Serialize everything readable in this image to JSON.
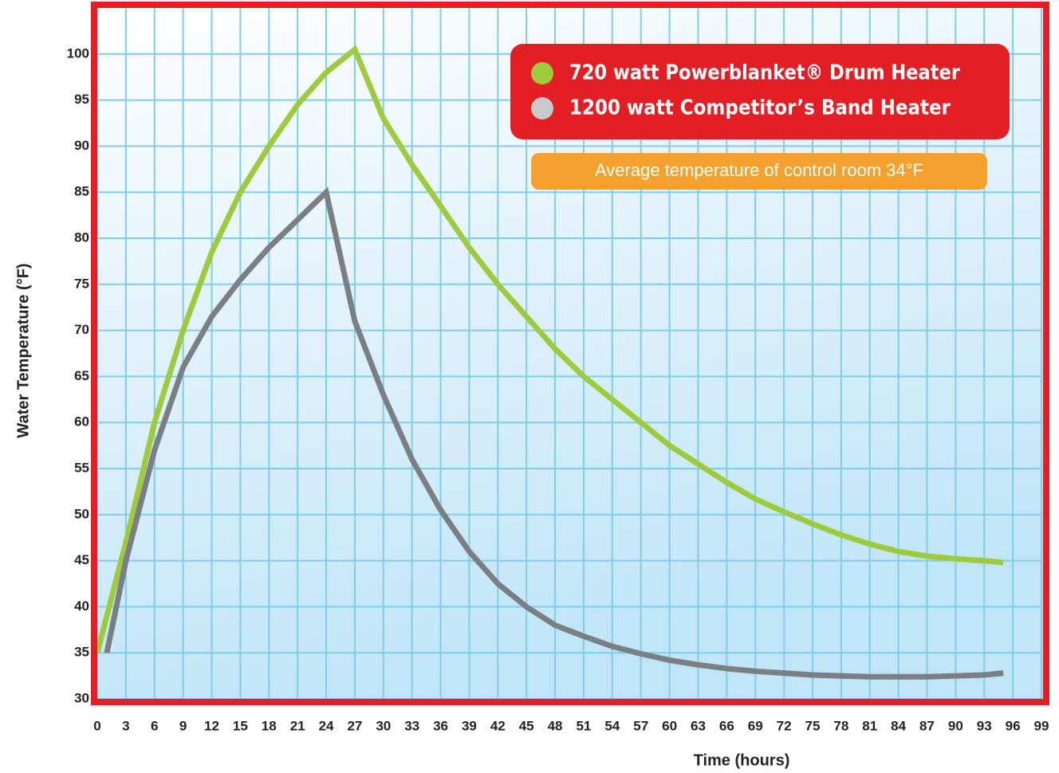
{
  "chart_data": {
    "type": "line",
    "y_label": "Water Temperature (°F)",
    "x_label": "Time (hours)",
    "annotation": "Average temperature of control room 34°F",
    "xlim": [
      0,
      99
    ],
    "ylim": [
      30,
      105
    ],
    "xticks": [
      0,
      3,
      6,
      9,
      12,
      15,
      18,
      21,
      24,
      27,
      30,
      33,
      36,
      39,
      42,
      45,
      48,
      51,
      54,
      57,
      60,
      63,
      66,
      69,
      72,
      75,
      78,
      81,
      84,
      87,
      90,
      93,
      96,
      99
    ],
    "yticks": [
      30,
      35,
      40,
      45,
      50,
      55,
      60,
      65,
      70,
      75,
      80,
      85,
      90,
      95,
      100
    ],
    "grid": true,
    "series": [
      {
        "name": "720 watt Powerblanket® Drum Heater",
        "color": "#9dcb3c",
        "x": [
          0,
          3,
          6,
          9,
          12,
          15,
          18,
          21,
          24,
          27,
          30,
          33,
          36,
          39,
          42,
          45,
          48,
          51,
          54,
          57,
          60,
          63,
          66,
          69,
          72,
          75,
          78,
          81,
          84,
          87,
          90,
          93,
          95
        ],
        "values": [
          35,
          47,
          60,
          70,
          78.5,
          85,
          90,
          94.5,
          98,
          100.5,
          93,
          88,
          83.5,
          79,
          75,
          71.5,
          68,
          65,
          62.5,
          60,
          57.5,
          55.5,
          53.5,
          51.7,
          50.3,
          49,
          47.8,
          46.8,
          46,
          45.5,
          45.2,
          45,
          44.8
        ]
      },
      {
        "name": "1200 watt Competitor’s Band Heater",
        "color": "#7a7f84",
        "x": [
          1,
          3,
          6,
          9,
          12,
          15,
          18,
          21,
          24,
          27,
          30,
          33,
          36,
          39,
          42,
          45,
          48,
          51,
          54,
          57,
          60,
          63,
          66,
          69,
          72,
          75,
          78,
          81,
          84,
          87,
          90,
          93,
          95
        ],
        "values": [
          35,
          45,
          57,
          66,
          71.5,
          75.5,
          79,
          82,
          85,
          71,
          63,
          56,
          50.5,
          46,
          42.5,
          40,
          38,
          36.8,
          35.7,
          34.9,
          34.2,
          33.7,
          33.3,
          33,
          32.8,
          32.6,
          32.5,
          32.4,
          32.4,
          32.4,
          32.5,
          32.6,
          32.8
        ]
      }
    ]
  }
}
